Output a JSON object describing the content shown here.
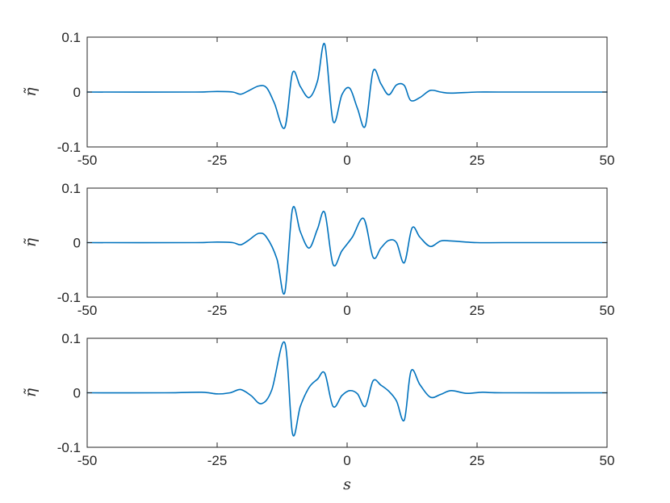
{
  "chart_data": [
    {
      "type": "line",
      "title": "",
      "xlabel": "",
      "ylabel": "η̃",
      "xlim": [
        -50,
        50
      ],
      "ylim": [
        -0.1,
        0.1
      ],
      "xticks": [
        -50,
        -25,
        0,
        25,
        50
      ],
      "xtick_labels": [
        "-50",
        "-25",
        "0",
        "25",
        "50"
      ],
      "yticks": [
        -0.1,
        0,
        0.1
      ],
      "ytick_labels": [
        "-0.1",
        "0",
        "0.1"
      ],
      "grid": false,
      "series": [
        {
          "color": "#0072bd",
          "x": [
            -50,
            -30,
            -25,
            -22,
            -20.5,
            -19,
            -17,
            -15.5,
            -14,
            -12,
            -10.5,
            -9,
            -7.3,
            -5.7,
            -4.3,
            -2.7,
            -1,
            0.5,
            2,
            3.5,
            5,
            6.5,
            8,
            9.5,
            11,
            12.2,
            14,
            16,
            18,
            20,
            25,
            30,
            50
          ],
          "y": [
            0,
            0,
            0.001,
            0,
            -0.004,
            0.002,
            0.011,
            0.008,
            -0.02,
            -0.065,
            0.035,
            0.01,
            -0.01,
            0.02,
            0.087,
            -0.053,
            -0.005,
            0.007,
            -0.03,
            -0.062,
            0.038,
            0.015,
            -0.005,
            0.013,
            0.012,
            -0.015,
            -0.01,
            0.003,
            0,
            -0.002,
            0,
            0,
            0
          ]
        }
      ]
    },
    {
      "type": "line",
      "title": "",
      "xlabel": "",
      "ylabel": "η̃",
      "xlim": [
        -50,
        50
      ],
      "ylim": [
        -0.1,
        0.1
      ],
      "xticks": [
        -50,
        -25,
        0,
        25,
        50
      ],
      "xtick_labels": [
        "-50",
        "-25",
        "0",
        "25",
        "50"
      ],
      "yticks": [
        -0.1,
        0,
        0.1
      ],
      "ytick_labels": [
        "-0.1",
        "0",
        "0.1"
      ],
      "grid": false,
      "series": [
        {
          "color": "#0072bd",
          "x": [
            -50,
            -30,
            -25,
            -22,
            -20.5,
            -19,
            -17,
            -15.5,
            -13.5,
            -12,
            -10.5,
            -9,
            -7.3,
            -5.7,
            -4.3,
            -2.7,
            -1,
            1,
            3.2,
            5,
            6.5,
            8,
            9.5,
            11,
            12.5,
            14,
            16,
            18,
            20,
            25,
            30,
            50
          ],
          "y": [
            0,
            0,
            0.001,
            0,
            -0.004,
            0.004,
            0.017,
            0.01,
            -0.03,
            -0.092,
            0.062,
            0.02,
            -0.01,
            0.025,
            0.055,
            -0.04,
            -0.015,
            0.01,
            0.044,
            -0.027,
            -0.01,
            0.004,
            0,
            -0.037,
            0.027,
            0.01,
            -0.007,
            0.003,
            0.003,
            0,
            0,
            0
          ]
        }
      ]
    },
    {
      "type": "line",
      "title": "",
      "xlabel": "s",
      "ylabel": "η̃",
      "xlim": [
        -50,
        50
      ],
      "ylim": [
        -0.1,
        0.1
      ],
      "xticks": [
        -50,
        -25,
        0,
        25,
        50
      ],
      "xtick_labels": [
        "-50",
        "-25",
        "0",
        "25",
        "50"
      ],
      "yticks": [
        -0.1,
        0,
        0.1
      ],
      "ytick_labels": [
        "-0.1",
        "0",
        "0.1"
      ],
      "grid": false,
      "series": [
        {
          "color": "#0072bd",
          "x": [
            -50,
            -35,
            -28,
            -25,
            -22.5,
            -20.5,
            -18.5,
            -16.5,
            -14.5,
            -12,
            -10.5,
            -9,
            -7.3,
            -5.7,
            -4.3,
            -2.7,
            -1,
            0.5,
            2,
            3.5,
            5,
            6.5,
            8,
            9.5,
            11,
            12.3,
            14,
            16,
            18,
            20,
            23,
            26,
            30,
            50
          ],
          "y": [
            0,
            0,
            0.001,
            -0.002,
            0,
            0.006,
            -0.005,
            -0.02,
            0.005,
            0.092,
            -0.075,
            -0.025,
            0.01,
            0.025,
            0.036,
            -0.025,
            -0.005,
            0.004,
            -0.002,
            -0.025,
            0.022,
            0.014,
            0.003,
            -0.015,
            -0.05,
            0.04,
            0.015,
            -0.008,
            -0.003,
            0.004,
            -0.001,
            0.001,
            0,
            0
          ]
        }
      ]
    }
  ]
}
